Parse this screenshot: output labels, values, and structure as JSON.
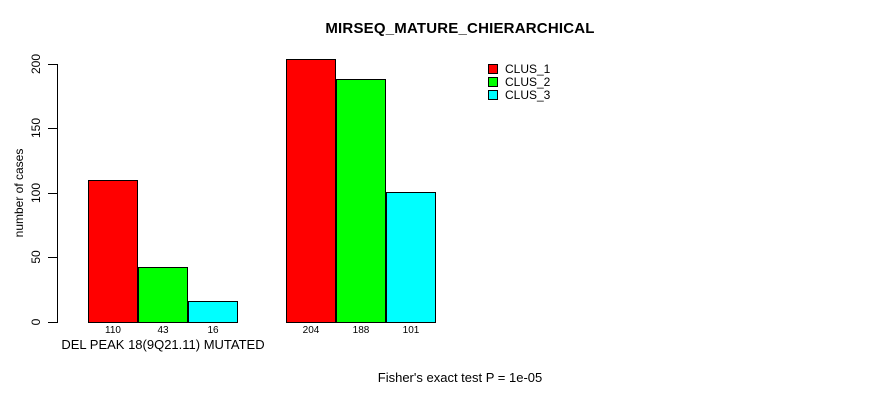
{
  "chart_data": {
    "type": "bar",
    "title": "MIRSEQ_MATURE_CHIERARCHICAL",
    "ylabel": "number of cases",
    "xlabel": "",
    "ylim": [
      0,
      200
    ],
    "yticks": [
      0,
      50,
      100,
      150,
      200
    ],
    "grid": false,
    "categories": [
      "DEL PEAK 18(9Q21.11) MUTATED",
      ""
    ],
    "series": [
      {
        "name": "CLUS_1",
        "color": "#ff0000",
        "values": [
          110,
          204
        ]
      },
      {
        "name": "CLUS_2",
        "color": "#00ff00",
        "values": [
          43,
          188
        ]
      },
      {
        "name": "CLUS_3",
        "color": "#00ffff",
        "values": [
          16,
          101
        ]
      }
    ],
    "show_bar_values": true,
    "bar_border_color": "#000000",
    "axis_color": "#000000",
    "background_color": "#ffffff",
    "legend": {
      "position": "top-right-inside",
      "entries": [
        "CLUS_1",
        "CLUS_2",
        "CLUS_3"
      ]
    },
    "annotation": "Fisher's exact test P = 1e-05"
  }
}
